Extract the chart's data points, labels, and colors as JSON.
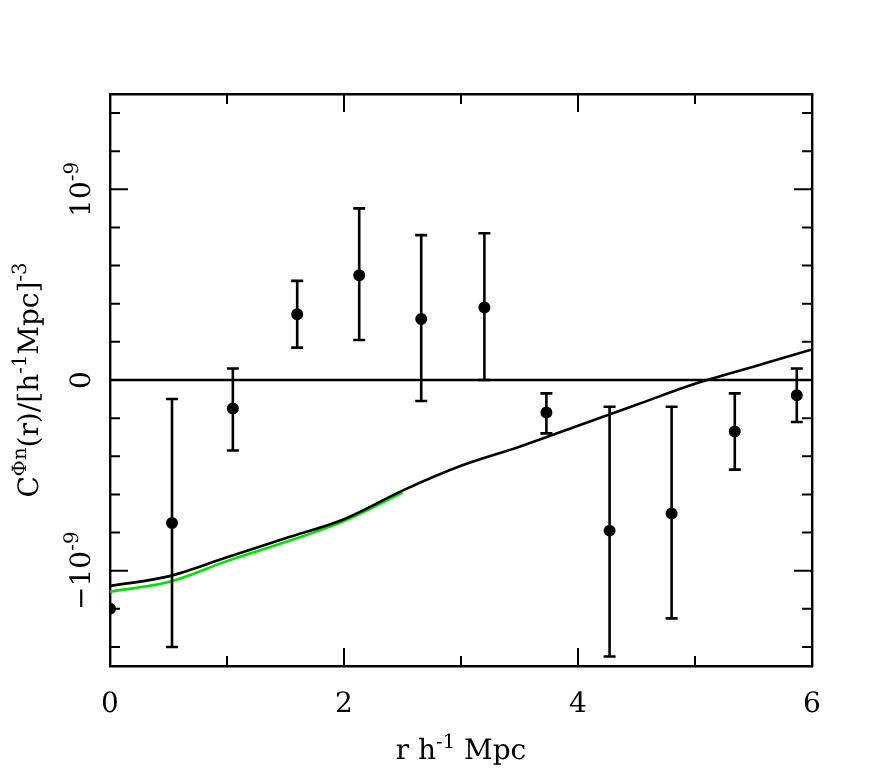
{
  "chart_data": {
    "type": "scatter",
    "xlabel": "r h$^{-1}$ Mpc",
    "ylabel": "C$^{Φn}$(r)/[h$^{-1}$Mpc]$^{-3}$",
    "x": [
      0,
      0.53,
      1.05,
      1.6,
      2.13,
      2.66,
      3.2,
      3.73,
      4.27,
      4.8,
      5.34,
      5.87
    ],
    "series": [
      {
        "type": "scatter",
        "marker": "circle",
        "color": "#000000",
        "values": [
          -1.2e-09,
          -7.5e-10,
          -1.5e-10,
          3.45e-10,
          5.5e-10,
          3.2e-10,
          3.8e-10,
          -1.7e-10,
          -7.9e-10,
          -7e-10,
          -2.7e-10,
          -8e-11
        ],
        "errors": [
          null,
          [
            -1.4e-09,
            -1e-10
          ],
          [
            -3.7e-10,
            6e-11
          ],
          [
            1.7e-10,
            5.2e-10
          ],
          [
            2.1e-10,
            9e-10
          ],
          [
            -1.1e-10,
            7.6e-10
          ],
          [
            0,
            7.7e-10
          ],
          [
            -2.8e-10,
            -7e-11
          ],
          [
            -1.45e-09,
            -1.4e-10
          ],
          [
            -1.25e-09,
            -1.4e-10
          ],
          [
            -4.7e-10,
            -7e-11
          ],
          [
            -2.2e-10,
            6e-11
          ]
        ]
      },
      {
        "type": "line",
        "marker": "none",
        "color": "#000000",
        "x": [
          0,
          0.5,
          1,
          1.5,
          2,
          2.5,
          3,
          3.5,
          4,
          4.5,
          5,
          5.5,
          6
        ],
        "values": [
          -1.08e-09,
          -1.03e-09,
          -9.3e-10,
          -8.3e-10,
          -7.3e-10,
          -5.8e-10,
          -4.5e-10,
          -3.5e-10,
          -2.4e-10,
          -1.3e-10,
          -2e-11,
          7e-11,
          1.6e-10
        ]
      },
      {
        "type": "line",
        "marker": "none",
        "color": "#00e000",
        "x": [
          0,
          0.5,
          1,
          1.5,
          2,
          2.5
        ],
        "values": [
          -1.11e-09,
          -1.06e-09,
          -9.5e-10,
          -8.5e-10,
          -7.4e-10,
          -5.9e-10
        ]
      }
    ],
    "xlim": [
      0,
      6
    ],
    "xticks": [
      0,
      {
        "value": 1,
        "label": null
      },
      2,
      {
        "value": 3,
        "label": null
      },
      4,
      {
        "value": 5,
        "label": null
      },
      6
    ],
    "ylim": [
      -1.5e-09,
      1.5e-09
    ],
    "yticks": [
      {
        "value": -1.4e-09,
        "label": null
      },
      {
        "value": -1.2e-09,
        "label": null
      },
      {
        "value": -1e-09,
        "label": "−10$^{-9}$"
      },
      {
        "value": -8e-10,
        "label": null
      },
      {
        "value": -6e-10,
        "label": null
      },
      {
        "value": -4e-10,
        "label": null
      },
      {
        "value": -2e-10,
        "label": null
      },
      0,
      {
        "value": 2e-10,
        "label": null
      },
      {
        "value": 4e-10,
        "label": null
      },
      {
        "value": 6e-10,
        "label": null
      },
      {
        "value": 8e-10,
        "label": null
      },
      {
        "value": 1e-09,
        "label": "10$^{-9}$"
      },
      {
        "value": 1.2e-09,
        "label": null
      },
      {
        "value": 1.4e-09,
        "label": null
      }
    ],
    "ref_lines": [
      {
        "axis": "y",
        "value": 0,
        "color": "#000000"
      }
    ],
    "grid": false,
    "legend": false
  }
}
